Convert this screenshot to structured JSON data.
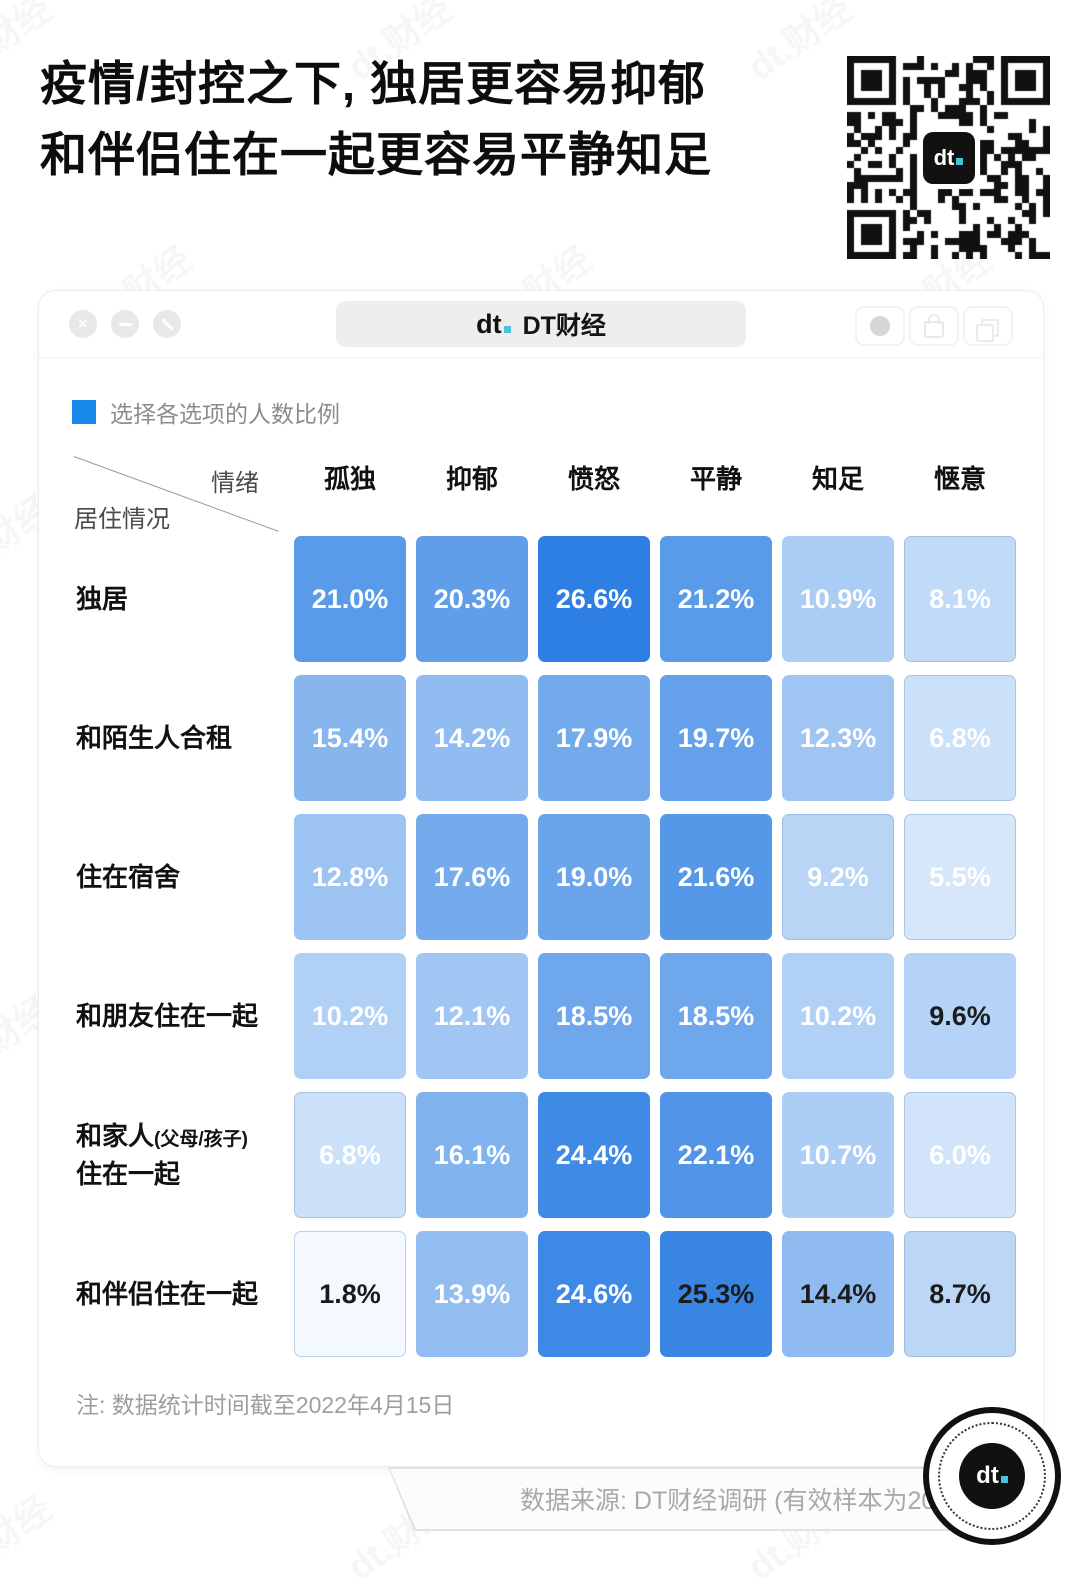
{
  "title": {
    "line1": "疫情/封控之下, 独居更容易抑郁",
    "line2": "和伴侣住在一起更容易平静知足"
  },
  "qr": {
    "center_logo": "dt"
  },
  "window": {
    "app_name": "DT财经",
    "logo_text": "dt",
    "left_controls": [
      "close",
      "minimize",
      "resize"
    ],
    "right_controls": [
      "record",
      "lock",
      "duplicate"
    ]
  },
  "legend": {
    "label": "选择各选项的人数比例",
    "swatch_color": "#1787e8"
  },
  "axis": {
    "columns_label": "情绪",
    "rows_label": "居住情况"
  },
  "chart_data": {
    "type": "heatmap",
    "value_unit": "%",
    "columns": [
      "孤独",
      "抑郁",
      "愤怒",
      "平静",
      "知足",
      "惬意"
    ],
    "rows": [
      {
        "label": "独居",
        "values": [
          21.0,
          20.3,
          26.6,
          21.2,
          10.9,
          8.1
        ]
      },
      {
        "label": "和陌生人合租",
        "values": [
          15.4,
          14.2,
          17.9,
          19.7,
          12.3,
          6.8
        ]
      },
      {
        "label": "住在宿舍",
        "values": [
          12.8,
          17.6,
          19.0,
          21.6,
          9.2,
          5.5
        ]
      },
      {
        "label": "和朋友住在一起",
        "values": [
          10.2,
          12.1,
          18.5,
          18.5,
          10.2,
          9.6
        ]
      },
      {
        "label": "和家人(父母/孩子)住在一起",
        "label_parts": {
          "line1_main": "和家人",
          "line1_paren": "(父母/孩子)",
          "line2": "住在一起"
        },
        "values": [
          6.8,
          16.1,
          24.4,
          22.1,
          10.7,
          6.0
        ]
      },
      {
        "label": "和伴侣住在一起",
        "values": [
          1.8,
          13.9,
          24.6,
          25.3,
          14.4,
          8.7
        ]
      }
    ],
    "dark_text_cells": [
      [
        3,
        5
      ],
      [
        5,
        0
      ],
      [
        5,
        3
      ],
      [
        5,
        4
      ],
      [
        5,
        5
      ]
    ],
    "color_scale": {
      "min_value": 1.8,
      "max_value": 26.6,
      "min_color": "#f3f9fe",
      "max_color": "#2e7fe3"
    },
    "text_colors": {
      "light": "#ffffff",
      "dark": "#1b1b1b"
    }
  },
  "note": "注: 数据统计时间截至2022年4月15日",
  "footer": {
    "source": "数据来源: DT财经调研 (有效样本为2079份)",
    "logo_text": "dt"
  },
  "watermark": {
    "text": "dt.财经"
  }
}
